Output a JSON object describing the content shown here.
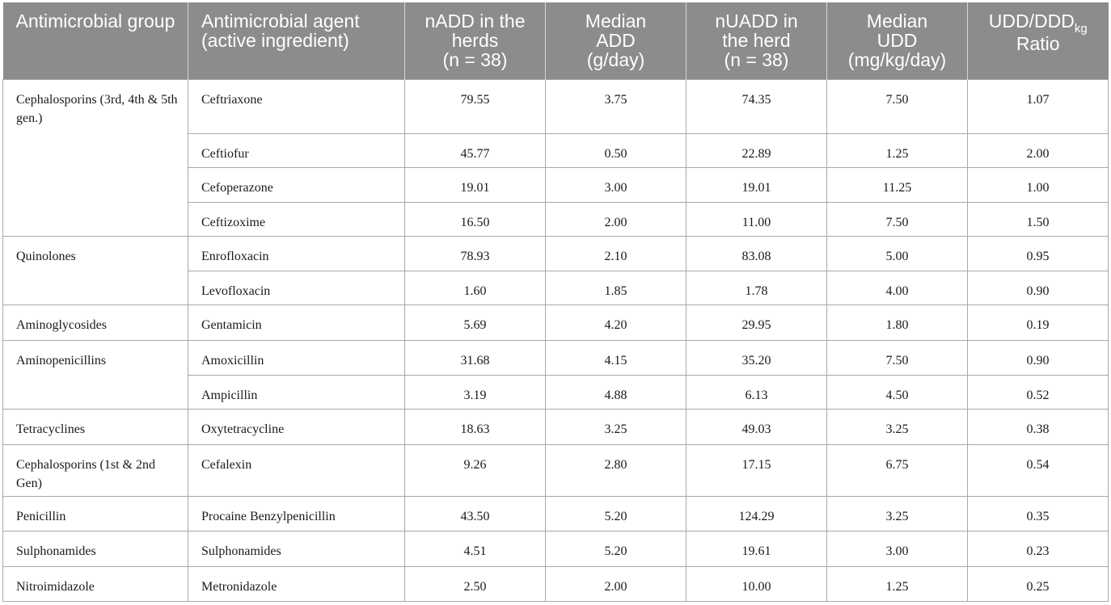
{
  "headers": {
    "group": "Antimicrobial group",
    "agent": "Antimicrobial agent (active ingredient)",
    "nadd_line1": "nADD in the",
    "nadd_line2": "herds",
    "nadd_n": "(n = 38)",
    "median_add_line1": "Median",
    "median_add_line2": "ADD",
    "median_add_line3": "(g/day)",
    "nuadd_line1": "nUADD in",
    "nuadd_line2": "the herd",
    "nuadd_n": "(n = 38)",
    "median_udd_line1": "Median",
    "median_udd_line2": "UDD",
    "median_udd_line3": "(mg/kg/day)",
    "ratio_main": "UDD/DDD",
    "ratio_sub": "kg",
    "ratio_line2": "Ratio"
  },
  "groups": [
    {
      "name": "Cephalosporins (3rd, 4th & 5th gen.)",
      "rows": [
        {
          "agent": "Ceftriaxone",
          "nadd": "79.55",
          "median_add": "3.75",
          "nuadd": "74.35",
          "median_udd": "7.50",
          "ratio": "1.07"
        },
        {
          "agent": "Ceftiofur",
          "nadd": "45.77",
          "median_add": "0.50",
          "nuadd": "22.89",
          "median_udd": "1.25",
          "ratio": "2.00"
        },
        {
          "agent": "Cefoperazone",
          "nadd": "19.01",
          "median_add": "3.00",
          "nuadd": "19.01",
          "median_udd": "11.25",
          "ratio": "1.00"
        },
        {
          "agent": "Ceftizoxime",
          "nadd": "16.50",
          "median_add": "2.00",
          "nuadd": "11.00",
          "median_udd": "7.50",
          "ratio": "1.50"
        }
      ]
    },
    {
      "name": "Quinolones",
      "rows": [
        {
          "agent": "Enrofloxacin",
          "nadd": "78.93",
          "median_add": "2.10",
          "nuadd": "83.08",
          "median_udd": "5.00",
          "ratio": "0.95"
        },
        {
          "agent": "Levofloxacin",
          "nadd": "1.60",
          "median_add": "1.85",
          "nuadd": "1.78",
          "median_udd": "4.00",
          "ratio": "0.90"
        }
      ]
    },
    {
      "name": "Aminoglycosides",
      "rows": [
        {
          "agent": "Gentamicin",
          "nadd": "5.69",
          "median_add": "4.20",
          "nuadd": "29.95",
          "median_udd": "1.80",
          "ratio": "0.19"
        }
      ]
    },
    {
      "name": "Aminopenicillins",
      "rows": [
        {
          "agent": "Amoxicillin",
          "nadd": "31.68",
          "median_add": "4.15",
          "nuadd": "35.20",
          "median_udd": "7.50",
          "ratio": "0.90"
        },
        {
          "agent": "Ampicillin",
          "nadd": "3.19",
          "median_add": "4.88",
          "nuadd": "6.13",
          "median_udd": "4.50",
          "ratio": "0.52"
        }
      ]
    },
    {
      "name": "Tetracyclines",
      "rows": [
        {
          "agent": "Oxytetracycline",
          "nadd": "18.63",
          "median_add": "3.25",
          "nuadd": "49.03",
          "median_udd": "3.25",
          "ratio": "0.38"
        }
      ]
    },
    {
      "name": "Cephalosporins (1st & 2nd Gen)",
      "rows": [
        {
          "agent": "Cefalexin",
          "nadd": "9.26",
          "median_add": "2.80",
          "nuadd": "17.15",
          "median_udd": "6.75",
          "ratio": "0.54"
        }
      ]
    },
    {
      "name": "Penicillin",
      "rows": [
        {
          "agent": "Procaine Benzylpenicillin",
          "nadd": "43.50",
          "median_add": "5.20",
          "nuadd": "124.29",
          "median_udd": "3.25",
          "ratio": "0.35"
        }
      ]
    },
    {
      "name": "Sulphonamides",
      "rows": [
        {
          "agent": "Sulphonamides",
          "nadd": "4.51",
          "median_add": "5.20",
          "nuadd": "19.61",
          "median_udd": "3.00",
          "ratio": "0.23"
        }
      ]
    },
    {
      "name": "Nitroimidazole",
      "rows": [
        {
          "agent": "Metronidazole",
          "nadd": "2.50",
          "median_add": "2.00",
          "nuadd": "10.00",
          "median_udd": "1.25",
          "ratio": "0.25"
        }
      ]
    }
  ]
}
